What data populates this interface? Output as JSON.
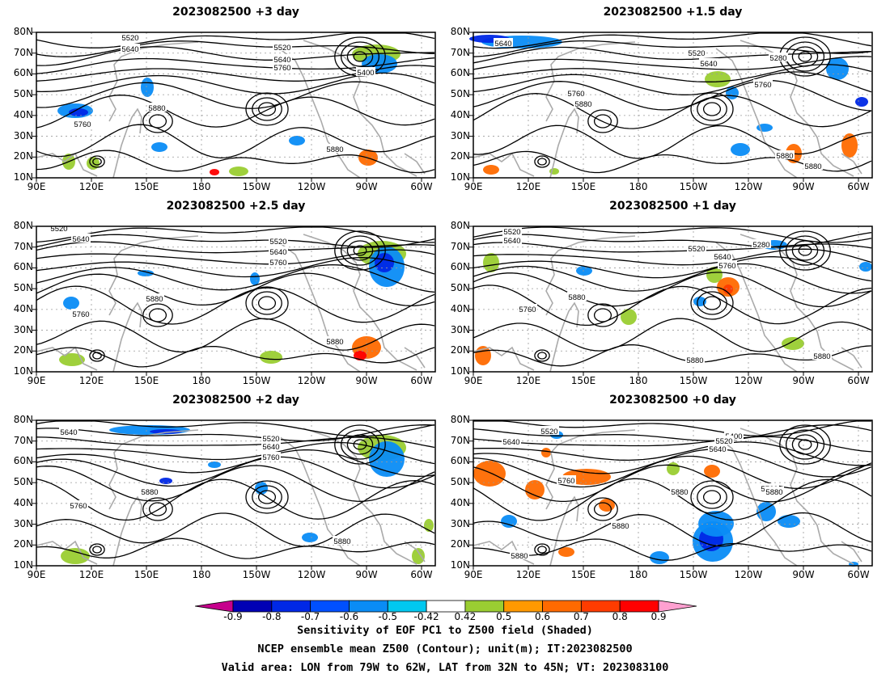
{
  "panels": [
    {
      "title": "2023082500 +3 day",
      "labels": [
        "5520",
        "5640",
        "5520",
        "5640",
        "5760",
        "5400",
        "5880",
        "5760",
        "5880"
      ]
    },
    {
      "title": "2023082500 +1.5 day",
      "labels": [
        "5640",
        "5520",
        "5640",
        "5280",
        "5760",
        "5760",
        "5880",
        "5880",
        "5880"
      ]
    },
    {
      "title": "2023082500 +2.5 day",
      "labels": [
        "5520",
        "5640",
        "5520",
        "5640",
        "5760",
        "5760",
        "5880",
        "5880"
      ]
    },
    {
      "title": "2023082500 +1 day",
      "labels": [
        "5520",
        "5640",
        "5520",
        "5280",
        "5640",
        "5760",
        "5760",
        "5880",
        "5880",
        "5880"
      ]
    },
    {
      "title": "2023082500 +2 day",
      "labels": [
        "5640",
        "5520",
        "5640",
        "5760",
        "5880",
        "5760",
        "5880"
      ]
    },
    {
      "title": "2023082500 +0 day",
      "labels": [
        "5520",
        "5640",
        "5400",
        "5520",
        "5640",
        "5760",
        "5760",
        "5880",
        "5880",
        "5880",
        "5880"
      ]
    }
  ],
  "lat_labels": [
    "10N",
    "20N",
    "30N",
    "40N",
    "50N",
    "60N",
    "70N",
    "80N"
  ],
  "lon_labels": [
    "90E",
    "120E",
    "150E",
    "180",
    "150W",
    "120W",
    "90W",
    "60W"
  ],
  "colorbar": {
    "ticks": [
      "-0.9",
      "-0.8",
      "-0.7",
      "-0.6",
      "-0.5",
      "-0.42",
      "0.42",
      "0.5",
      "0.6",
      "0.7",
      "0.8",
      "0.9"
    ],
    "colors": [
      "#c6008c",
      "#0000b4",
      "#0028e6",
      "#0050ff",
      "#0a8cf5",
      "#00c8f0",
      "#ffffff",
      "#9acd32",
      "#ff9900",
      "#ff6a00",
      "#ff3c00",
      "#ff0000",
      "#ffa0d0"
    ]
  },
  "footer": {
    "line1": "Sensitivity of EOF PC1 to Z500 field (Shaded)",
    "line2": "NCEP ensemble mean Z500 (Contour); unit(m); IT:2023082500",
    "line3": "Valid area: LON from 79W to 62W, LAT from 32N to 45N; VT: 2023083100"
  }
}
